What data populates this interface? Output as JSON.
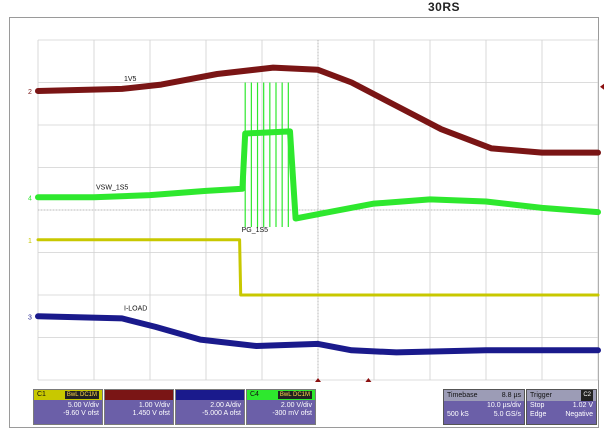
{
  "corner_label": "30RS",
  "chart_data": {
    "type": "line",
    "title": "",
    "grid": true,
    "time_per_div_us": 10.0,
    "x_range_div": [
      0,
      10
    ],
    "y_range_div": [
      0,
      8
    ],
    "series": [
      {
        "name": "1V5",
        "channel": "2",
        "color": "#7a1515",
        "points": [
          [
            0,
            6.8
          ],
          [
            1.5,
            6.85
          ],
          [
            2.2,
            6.95
          ],
          [
            3.2,
            7.2
          ],
          [
            4.2,
            7.35
          ],
          [
            5.0,
            7.3
          ],
          [
            5.6,
            7.0
          ],
          [
            6.4,
            6.45
          ],
          [
            7.2,
            5.9
          ],
          [
            8.1,
            5.45
          ],
          [
            9.0,
            5.35
          ],
          [
            10,
            5.35
          ]
        ]
      },
      {
        "name": "VSW_1S5",
        "channel": "4",
        "color": "#2ee82e",
        "points": [
          [
            0,
            4.3
          ],
          [
            1.0,
            4.3
          ],
          [
            2.0,
            4.35
          ],
          [
            3.0,
            4.45
          ],
          [
            3.65,
            4.5
          ],
          [
            3.7,
            5.8
          ],
          [
            4.5,
            5.85
          ],
          [
            4.6,
            3.8
          ],
          [
            5.2,
            3.95
          ],
          [
            6.0,
            4.15
          ],
          [
            7.0,
            4.25
          ],
          [
            8.0,
            4.2
          ],
          [
            9.0,
            4.05
          ],
          [
            10,
            3.95
          ]
        ]
      },
      {
        "name": "PG_1S5",
        "channel": "1",
        "color": "#c8c800",
        "points": [
          [
            0,
            3.3
          ],
          [
            3.6,
            3.3
          ],
          [
            3.62,
            2.0
          ],
          [
            10,
            2.0
          ]
        ]
      },
      {
        "name": "I-LOAD",
        "channel": "3",
        "color": "#1a1a8c",
        "points": [
          [
            0,
            1.5
          ],
          [
            1.5,
            1.45
          ],
          [
            2.1,
            1.25
          ],
          [
            2.9,
            0.95
          ],
          [
            3.9,
            0.8
          ],
          [
            5.0,
            0.85
          ],
          [
            5.6,
            0.7
          ],
          [
            6.4,
            0.65
          ],
          [
            8.0,
            0.7
          ],
          [
            10,
            0.7
          ]
        ]
      }
    ],
    "channels": [
      {
        "label": "C1",
        "badge": "BwL DC1M",
        "volts_div": "5.00 V/div",
        "offset": "-9.60 V ofst",
        "color": "#c8c800",
        "header_bg": "#c8c800"
      },
      {
        "label": "",
        "badge": "",
        "volts_div": "1.00 V/div",
        "offset": "1.450 V ofst",
        "color": "#7a1515",
        "header_bg": "#7a1515"
      },
      {
        "label": "",
        "badge": "",
        "volts_div": "2.00 A/div",
        "offset": "-5.000 A ofst",
        "color": "#1a1a8c",
        "header_bg": "#1a1a8c"
      },
      {
        "label": "C4",
        "badge": "BwL DC1M",
        "volts_div": "2.00 V/div",
        "offset": "-300 mV ofst",
        "color": "#2ee82e",
        "header_bg": "#2ee82e"
      }
    ],
    "timebase": {
      "label": "Timebase",
      "value": "8.8 µs",
      "div": "10.0 µs/div",
      "samples": "500 kS",
      "rate": "5.0 GS/s"
    },
    "trigger": {
      "label": "Trigger",
      "channel": "C2",
      "mode": "Stop",
      "level": "1.02 V",
      "type": "Edge",
      "slope": "Negative"
    }
  }
}
